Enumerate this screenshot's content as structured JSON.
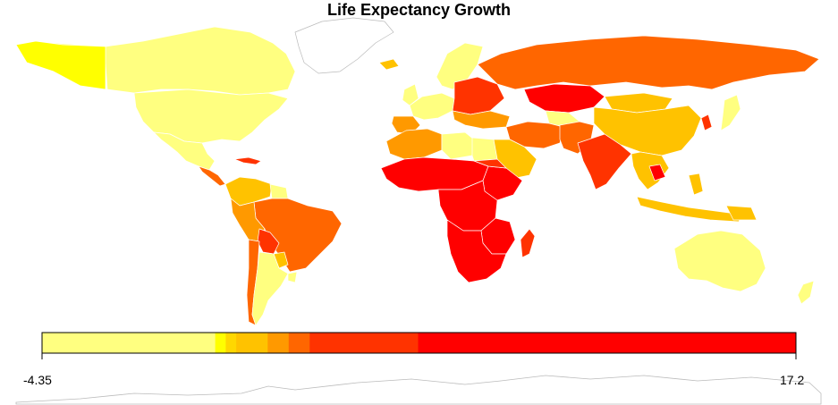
{
  "title": "Life Expectancy Growth",
  "legend": {
    "min_label": "-4.35",
    "max_label": "17.2",
    "min": -4.35,
    "max": 17.2,
    "bins": [
      {
        "from": -4.35,
        "to": 0.6,
        "color": "#FFFF80"
      },
      {
        "from": 0.6,
        "to": 0.9,
        "color": "#FFFF00"
      },
      {
        "from": 0.9,
        "to": 1.2,
        "color": "#FFD700"
      },
      {
        "from": 1.2,
        "to": 2.1,
        "color": "#FFC200"
      },
      {
        "from": 2.1,
        "to": 2.7,
        "color": "#FF9900"
      },
      {
        "from": 2.7,
        "to": 3.3,
        "color": "#FF6600"
      },
      {
        "from": 3.3,
        "to": 6.4,
        "color": "#FF3300"
      },
      {
        "from": 6.4,
        "to": 17.2,
        "color": "#FF0000"
      }
    ]
  },
  "colors": {
    "border": "#BBBBBB",
    "country_border": "#FFFFFF",
    "unfilled_land": "#FFFFFF"
  }
}
